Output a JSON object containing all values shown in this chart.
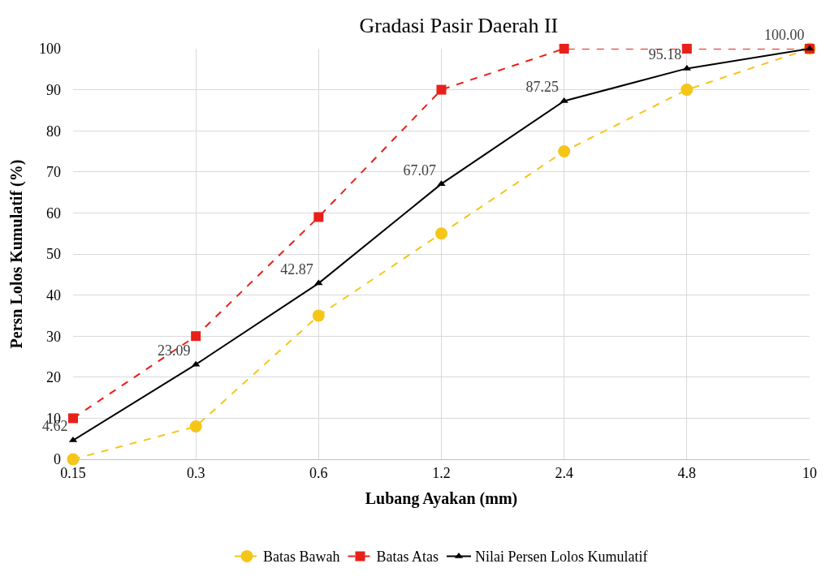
{
  "chart_data": {
    "type": "line",
    "title": "Gradasi Pasir Daerah II",
    "xlabel": "Lubang Ayakan (mm)",
    "ylabel": "Persn Lolos Kumulatif (%)",
    "categories": [
      "0.15",
      "0.3",
      "0.6",
      "1.2",
      "2.4",
      "4.8",
      "10"
    ],
    "series": [
      {
        "name": "Batas Bawah",
        "color": "#f5c518",
        "marker": "circle",
        "line_style": "dashed",
        "values": [
          0,
          8,
          35,
          55,
          75,
          90,
          100
        ]
      },
      {
        "name": "Batas Atas",
        "color": "#e8201a",
        "marker": "square",
        "line_style": "dashed",
        "values": [
          10,
          30,
          59,
          90,
          100,
          100,
          100
        ]
      },
      {
        "name": "Nilai Persen Lolos Kumulatif",
        "color": "#000000",
        "marker": "triangle",
        "line_style": "solid",
        "values": [
          4.62,
          23.09,
          42.87,
          67.07,
          87.25,
          95.18,
          100.0
        ],
        "value_labels": [
          "4.62",
          "23.09",
          "42.87",
          "67.07",
          "87.25",
          "95.18",
          "100.00"
        ]
      }
    ],
    "ylim": [
      0,
      100
    ],
    "yticks": [
      0,
      10,
      20,
      30,
      40,
      50,
      60,
      70,
      80,
      90,
      100
    ],
    "grid": true,
    "legend": "bottom"
  }
}
